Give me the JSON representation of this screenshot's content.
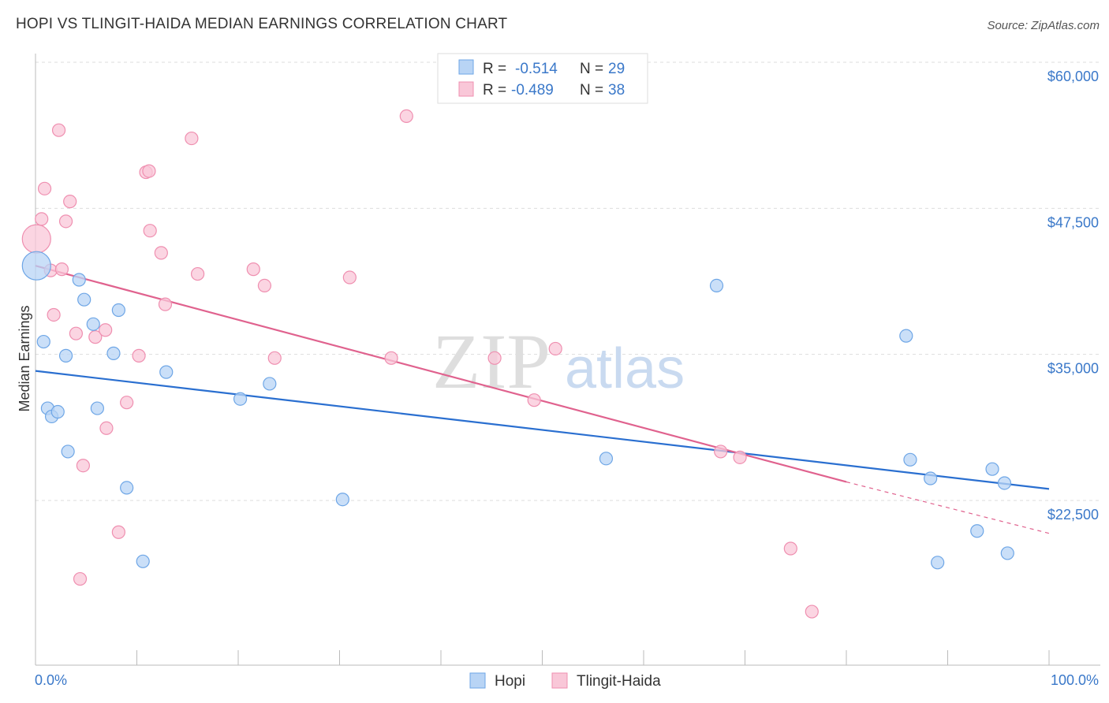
{
  "title": "HOPI VS TLINGIT-HAIDA MEDIAN EARNINGS CORRELATION CHART",
  "source": "Source: ZipAtlas.com",
  "watermark": {
    "zip": "ZIP",
    "atlas": "atlas"
  },
  "colors": {
    "hopi": "#6ea6e6",
    "hopi_fill": "#b8d4f5",
    "hopi_line": "#2a6fd0",
    "tlingit": "#ef8fb0",
    "tlingit_fill": "#f9c7d8",
    "tlingit_line": "#e0628e",
    "tick_label": "#3a78c9",
    "grid": "#dddddd"
  },
  "legend": {
    "rows": [
      {
        "r_label": "R =",
        "r_value": "-0.514",
        "n_label": "N =",
        "n_value": "29"
      },
      {
        "r_label": "R =",
        "r_value": "-0.489",
        "n_label": "N =",
        "n_value": "38"
      }
    ]
  },
  "bottom_legend": [
    "Hopi",
    "Tlingit-Haida"
  ],
  "chart_data": {
    "type": "scatter",
    "ylabel": "Median Earnings",
    "xlim": [
      0,
      100
    ],
    "ylim": [
      12000,
      62000
    ],
    "y_ticks": [
      {
        "value": 22500,
        "label": "$22,500"
      },
      {
        "value": 35000,
        "label": "$35,000"
      },
      {
        "value": 47500,
        "label": "$47,500"
      },
      {
        "value": 60000,
        "label": "$60,000"
      }
    ],
    "x_tick_labels": {
      "min": "0.0%",
      "max": "100.0%"
    },
    "grid": true,
    "series": [
      {
        "name": "Hopi",
        "r": -0.514,
        "n": 29,
        "trend": {
          "x": [
            0,
            100
          ],
          "y": [
            34800,
            24700
          ]
        },
        "points": [
          {
            "x": 0.1,
            "y": 43800,
            "big": true
          },
          {
            "x": 0.8,
            "y": 37300
          },
          {
            "x": 1.2,
            "y": 31600
          },
          {
            "x": 1.6,
            "y": 30900
          },
          {
            "x": 2.2,
            "y": 31300
          },
          {
            "x": 3.0,
            "y": 36100
          },
          {
            "x": 3.2,
            "y": 27900
          },
          {
            "x": 4.3,
            "y": 42600
          },
          {
            "x": 4.8,
            "y": 40900
          },
          {
            "x": 5.7,
            "y": 38800
          },
          {
            "x": 6.1,
            "y": 31600
          },
          {
            "x": 7.7,
            "y": 36300
          },
          {
            "x": 8.2,
            "y": 40000
          },
          {
            "x": 9.0,
            "y": 24800
          },
          {
            "x": 10.6,
            "y": 18500
          },
          {
            "x": 12.9,
            "y": 34700
          },
          {
            "x": 20.2,
            "y": 32400
          },
          {
            "x": 23.1,
            "y": 33700
          },
          {
            "x": 30.3,
            "y": 23800
          },
          {
            "x": 56.3,
            "y": 27300
          },
          {
            "x": 67.2,
            "y": 42100
          },
          {
            "x": 85.9,
            "y": 37800
          },
          {
            "x": 86.3,
            "y": 27200
          },
          {
            "x": 88.3,
            "y": 25600
          },
          {
            "x": 89.0,
            "y": 18400
          },
          {
            "x": 92.9,
            "y": 21100
          },
          {
            "x": 94.4,
            "y": 26400
          },
          {
            "x": 95.6,
            "y": 25200
          },
          {
            "x": 95.9,
            "y": 19200
          }
        ]
      },
      {
        "name": "Tlingit-Haida",
        "r": -0.489,
        "n": 38,
        "trend": {
          "x": [
            0,
            80
          ],
          "y": [
            43800,
            25300
          ],
          "dashed_to": {
            "x": 100,
            "y": 20900
          }
        },
        "points": [
          {
            "x": 0.1,
            "y": 46100,
            "big": true
          },
          {
            "x": 0.6,
            "y": 47800
          },
          {
            "x": 0.9,
            "y": 50400
          },
          {
            "x": 1.5,
            "y": 43400
          },
          {
            "x": 1.8,
            "y": 39600
          },
          {
            "x": 2.3,
            "y": 55400
          },
          {
            "x": 2.6,
            "y": 43500
          },
          {
            "x": 3.0,
            "y": 47600
          },
          {
            "x": 3.4,
            "y": 49300
          },
          {
            "x": 4.0,
            "y": 38000
          },
          {
            "x": 4.4,
            "y": 17000
          },
          {
            "x": 4.7,
            "y": 26700
          },
          {
            "x": 5.9,
            "y": 37700
          },
          {
            "x": 6.9,
            "y": 38300
          },
          {
            "x": 7.0,
            "y": 29900
          },
          {
            "x": 8.2,
            "y": 21000
          },
          {
            "x": 9.0,
            "y": 32100
          },
          {
            "x": 10.2,
            "y": 36100
          },
          {
            "x": 10.9,
            "y": 51800
          },
          {
            "x": 11.2,
            "y": 51900
          },
          {
            "x": 11.3,
            "y": 46800
          },
          {
            "x": 12.4,
            "y": 44900
          },
          {
            "x": 12.8,
            "y": 40500
          },
          {
            "x": 15.4,
            "y": 54700
          },
          {
            "x": 16.0,
            "y": 43100
          },
          {
            "x": 21.5,
            "y": 43500
          },
          {
            "x": 22.6,
            "y": 42100
          },
          {
            "x": 23.6,
            "y": 35900
          },
          {
            "x": 31.0,
            "y": 42800
          },
          {
            "x": 35.1,
            "y": 35900
          },
          {
            "x": 36.6,
            "y": 56600
          },
          {
            "x": 45.3,
            "y": 35900
          },
          {
            "x": 49.2,
            "y": 32300
          },
          {
            "x": 51.3,
            "y": 36700
          },
          {
            "x": 67.6,
            "y": 27900
          },
          {
            "x": 69.5,
            "y": 27400
          },
          {
            "x": 74.5,
            "y": 19600
          },
          {
            "x": 76.6,
            "y": 14200
          }
        ]
      }
    ]
  }
}
